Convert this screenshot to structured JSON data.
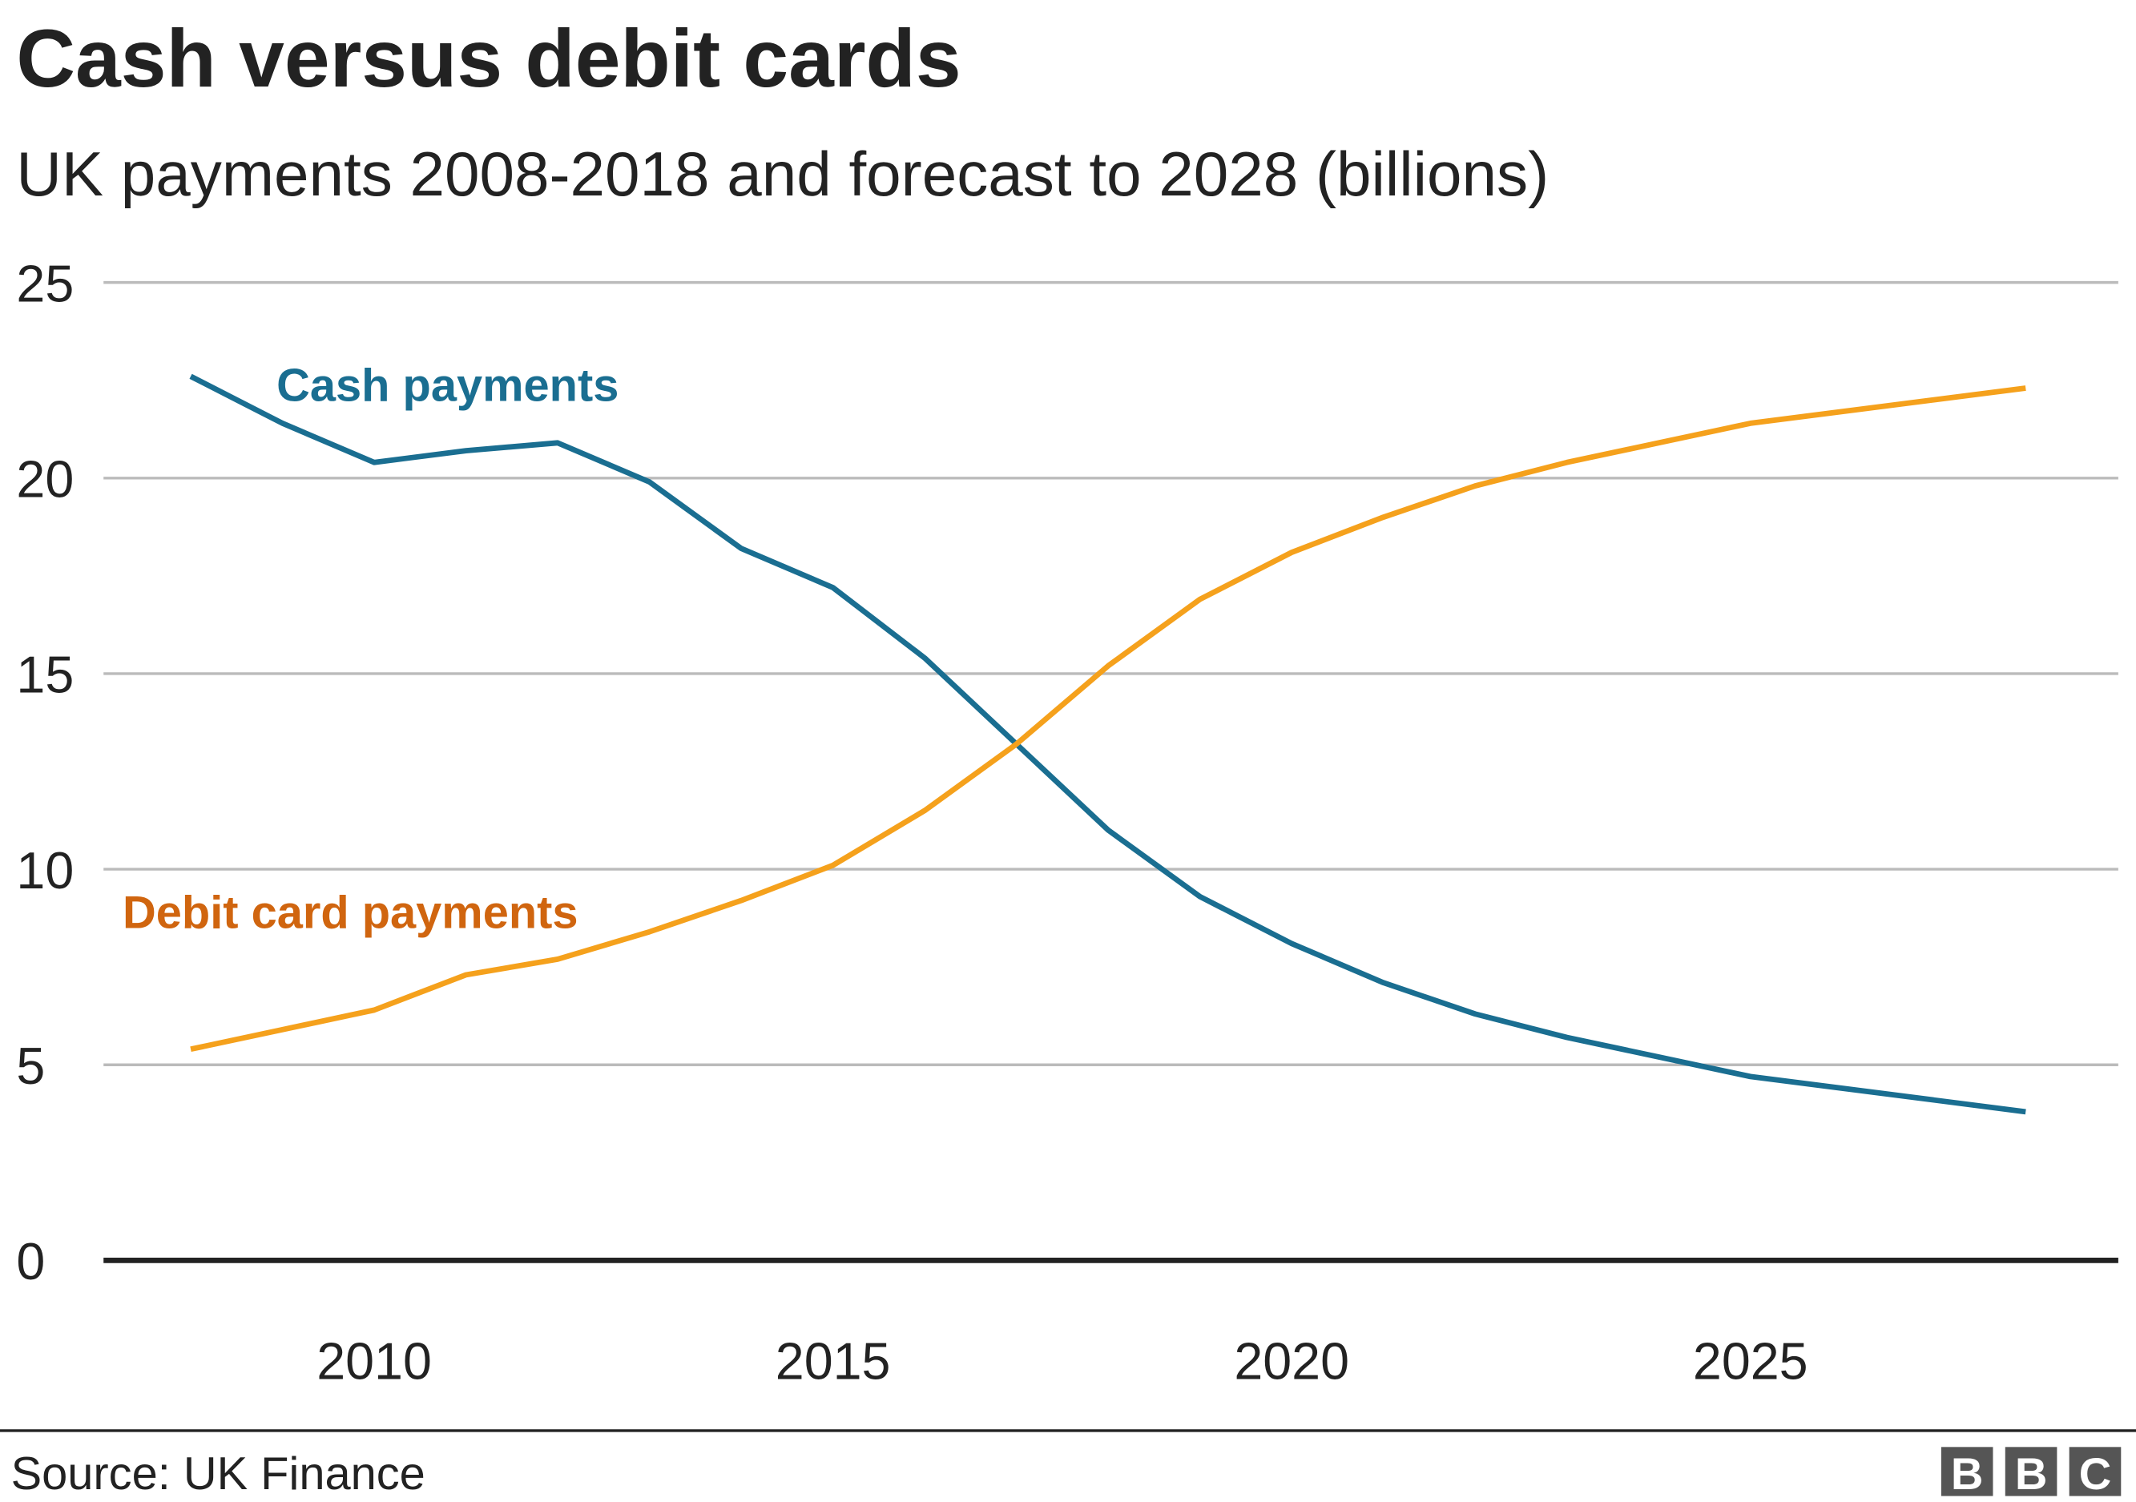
{
  "chart_data": {
    "type": "line",
    "title": "Cash versus debit cards",
    "subtitle": "UK payments 2008-2018 and forecast to 2028 (billions)",
    "xlabel": "",
    "ylabel": "",
    "xlim": [
      2008,
      2028
    ],
    "ylim": [
      0,
      25
    ],
    "yticks": [
      0,
      5,
      10,
      15,
      20,
      25
    ],
    "xticks": [
      2010,
      2015,
      2020,
      2025
    ],
    "grid": true,
    "legend": "inline labels",
    "x": [
      2008,
      2009,
      2010,
      2011,
      2012,
      2013,
      2014,
      2015,
      2016,
      2017,
      2018,
      2019,
      2020,
      2021,
      2022,
      2023,
      2024,
      2025,
      2026,
      2027,
      2028
    ],
    "series": [
      {
        "name": "Cash payments",
        "color": "#1a6e91",
        "label_color": "#1a6e91",
        "values": [
          22.6,
          21.4,
          20.4,
          20.7,
          20.9,
          19.9,
          18.2,
          17.2,
          15.4,
          13.2,
          11.0,
          9.3,
          8.1,
          7.1,
          6.3,
          5.7,
          5.2,
          4.7,
          4.4,
          4.1,
          3.8
        ]
      },
      {
        "name": "Debit card payments",
        "color": "#f5a11c",
        "label_color": "#d0650f",
        "values": [
          5.4,
          5.9,
          6.4,
          7.3,
          7.7,
          8.4,
          9.2,
          10.1,
          11.5,
          13.2,
          15.2,
          16.9,
          18.1,
          19.0,
          19.8,
          20.4,
          20.9,
          21.4,
          21.7,
          22.0,
          22.3
        ]
      }
    ],
    "source": "Source: UK Finance",
    "logo": "BBC"
  }
}
